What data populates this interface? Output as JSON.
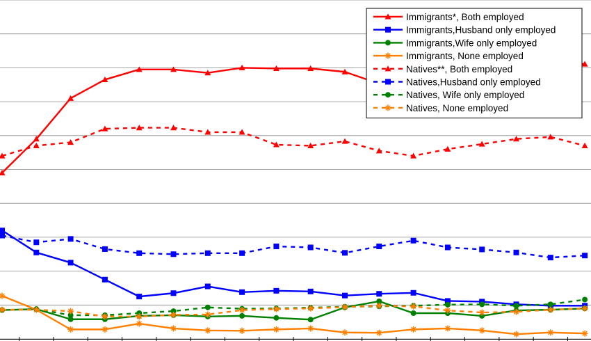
{
  "chart_data": {
    "type": "line",
    "title": "",
    "xlabel": "",
    "ylabel": "",
    "x": [
      1,
      2,
      3,
      4,
      5,
      6,
      7,
      8,
      9,
      10,
      11,
      12,
      13,
      14,
      15,
      16,
      17,
      18
    ],
    "ylim": [
      0,
      100
    ],
    "grid": true,
    "legend_position": "top-right",
    "series": [
      {
        "name": "Immigrants*, Both employed",
        "color": "#ff0000",
        "dash": false,
        "marker": "triangle",
        "values": [
          49.0,
          59.0,
          71.0,
          76.5,
          79.5,
          79.5,
          78.5,
          80.0,
          79.8,
          79.8,
          78.8,
          75.3,
          78.5,
          80.8,
          81.7,
          81.8,
          81.9,
          81.1
        ]
      },
      {
        "name": "Immigrants,Husband only employed",
        "color": "#0000ff",
        "dash": false,
        "marker": "square",
        "values": [
          32.0,
          25.5,
          22.5,
          17.5,
          12.5,
          13.5,
          15.5,
          13.8,
          14.2,
          14.0,
          12.8,
          13.3,
          13.6,
          11.2,
          11.0,
          10.2,
          9.8,
          9.8
        ]
      },
      {
        "name": "Immigrants,Wife only employed",
        "color": "#008000",
        "dash": false,
        "marker": "circle",
        "values": [
          8.5,
          8.8,
          5.8,
          5.8,
          6.8,
          7.0,
          6.6,
          6.8,
          6.2,
          5.7,
          9.3,
          11.1,
          7.6,
          7.6,
          6.8,
          8.4,
          8.6,
          9.0
        ]
      },
      {
        "name": "Immigrants, None employed",
        "color": "#ff8000",
        "dash": false,
        "marker": "asterisk",
        "values": [
          12.7,
          8.6,
          2.8,
          2.8,
          4.5,
          3.1,
          2.5,
          2.4,
          2.8,
          3.1,
          1.9,
          1.8,
          2.8,
          3.1,
          2.5,
          1.4,
          1.9,
          1.6
        ]
      },
      {
        "name": "Natives**, Both employed",
        "color": "#ff0000",
        "dash": true,
        "marker": "triangle",
        "values": [
          54.0,
          57.0,
          58.0,
          62.0,
          62.3,
          62.3,
          61.0,
          61.0,
          57.3,
          57.0,
          58.3,
          55.5,
          54.0,
          56.0,
          57.5,
          59.0,
          59.6,
          57.0
        ]
      },
      {
        "name": "Natives,Husband only employed",
        "color": "#0000ff",
        "dash": true,
        "marker": "square",
        "values": [
          30.5,
          28.5,
          29.5,
          26.5,
          25.3,
          25.0,
          25.3,
          25.3,
          27.3,
          27.0,
          25.4,
          27.3,
          29.0,
          27.0,
          26.4,
          25.5,
          24.0,
          24.6
        ]
      },
      {
        "name": "Natives, Wife only employed",
        "color": "#008000",
        "dash": true,
        "marker": "circle",
        "values": [
          8.5,
          8.8,
          7.0,
          7.0,
          7.6,
          8.2,
          9.3,
          8.9,
          9.0,
          9.2,
          9.5,
          9.6,
          9.8,
          10.1,
          10.2,
          9.8,
          10.2,
          11.6
        ]
      },
      {
        "name": "Natives, None employed",
        "color": "#ff8000",
        "dash": true,
        "marker": "asterisk",
        "values": [
          8.6,
          8.6,
          8.2,
          6.6,
          6.6,
          7.1,
          7.2,
          8.5,
          8.8,
          9.0,
          9.4,
          9.8,
          9.6,
          8.4,
          7.8,
          8.0,
          8.6,
          9.0
        ]
      }
    ]
  }
}
